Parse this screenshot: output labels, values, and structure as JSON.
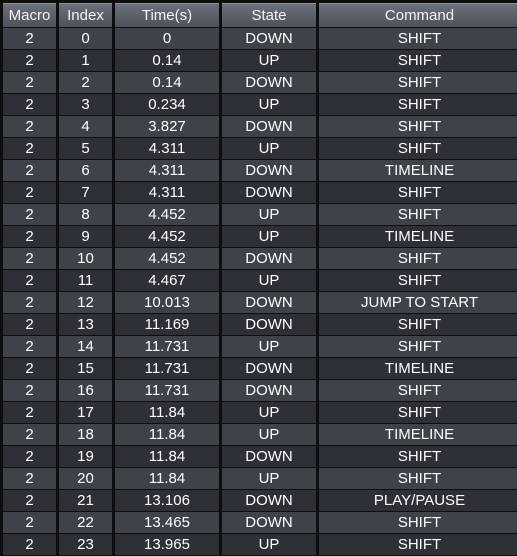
{
  "table": {
    "columns": [
      "Macro",
      "Index",
      "Time(s)",
      "State",
      "Command"
    ],
    "rows": [
      [
        "2",
        "0",
        "0",
        "DOWN",
        "SHIFT"
      ],
      [
        "2",
        "1",
        "0.14",
        "UP",
        "SHIFT"
      ],
      [
        "2",
        "2",
        "0.14",
        "DOWN",
        "SHIFT"
      ],
      [
        "2",
        "3",
        "0.234",
        "UP",
        "SHIFT"
      ],
      [
        "2",
        "4",
        "3.827",
        "DOWN",
        "SHIFT"
      ],
      [
        "2",
        "5",
        "4.311",
        "UP",
        "SHIFT"
      ],
      [
        "2",
        "6",
        "4.311",
        "DOWN",
        "TIMELINE"
      ],
      [
        "2",
        "7",
        "4.311",
        "DOWN",
        "SHIFT"
      ],
      [
        "2",
        "8",
        "4.452",
        "UP",
        "SHIFT"
      ],
      [
        "2",
        "9",
        "4.452",
        "UP",
        "TIMELINE"
      ],
      [
        "2",
        "10",
        "4.452",
        "DOWN",
        "SHIFT"
      ],
      [
        "2",
        "11",
        "4.467",
        "UP",
        "SHIFT"
      ],
      [
        "2",
        "12",
        "10.013",
        "DOWN",
        "JUMP TO START"
      ],
      [
        "2",
        "13",
        "11.169",
        "DOWN",
        "SHIFT"
      ],
      [
        "2",
        "14",
        "11.731",
        "UP",
        "SHIFT"
      ],
      [
        "2",
        "15",
        "11.731",
        "DOWN",
        "TIMELINE"
      ],
      [
        "2",
        "16",
        "11.731",
        "DOWN",
        "SHIFT"
      ],
      [
        "2",
        "17",
        "11.84",
        "UP",
        "SHIFT"
      ],
      [
        "2",
        "18",
        "11.84",
        "UP",
        "TIMELINE"
      ],
      [
        "2",
        "19",
        "11.84",
        "DOWN",
        "SHIFT"
      ],
      [
        "2",
        "20",
        "11.84",
        "UP",
        "SHIFT"
      ],
      [
        "2",
        "21",
        "13.106",
        "DOWN",
        "PLAY/PAUSE"
      ],
      [
        "2",
        "22",
        "13.465",
        "DOWN",
        "SHIFT"
      ],
      [
        "2",
        "23",
        "13.965",
        "UP",
        "SHIFT"
      ]
    ]
  }
}
